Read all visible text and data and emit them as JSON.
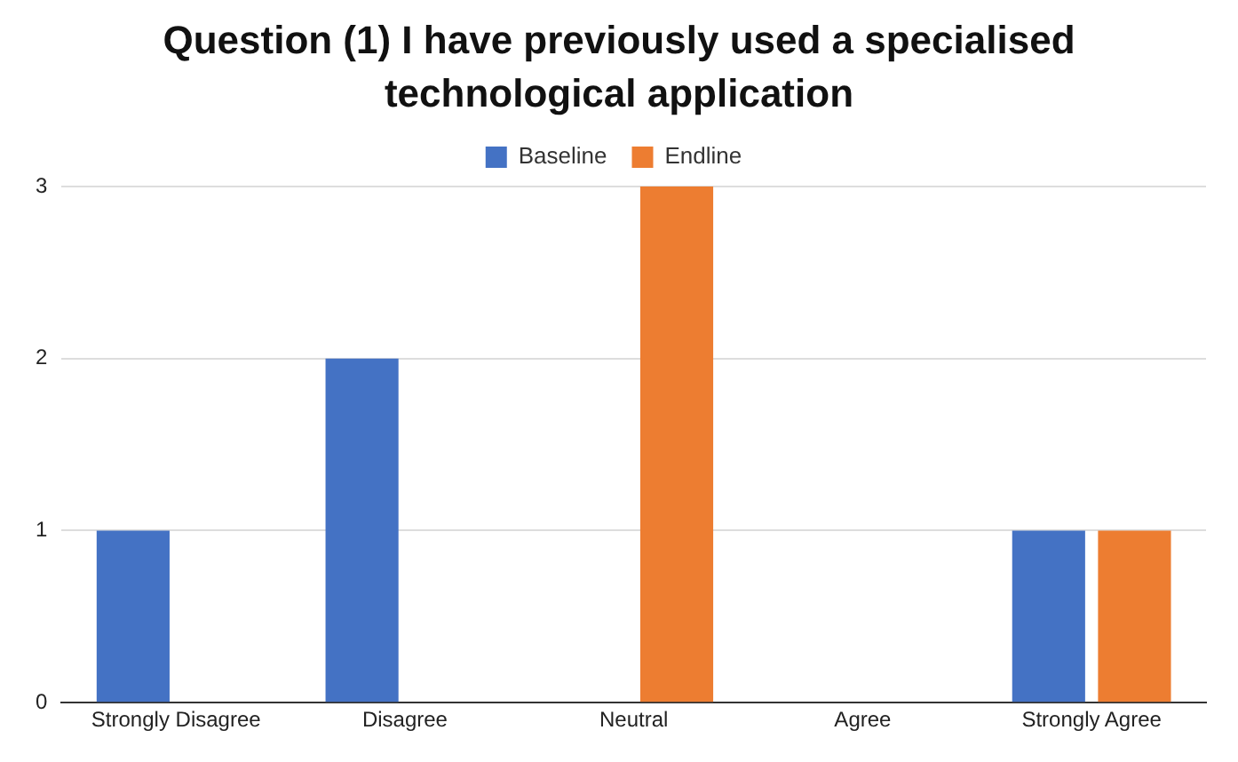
{
  "chart_data": {
    "type": "bar",
    "title": "Question (1) I have previously used a specialised technological application",
    "categories": [
      "Strongly Disagree",
      "Disagree",
      "Neutral",
      "Agree",
      "Strongly Agree"
    ],
    "series": [
      {
        "name": "Baseline",
        "color": "#4472c4",
        "values": [
          1,
          2,
          0,
          0,
          1
        ]
      },
      {
        "name": "Endline",
        "color": "#ed7d31",
        "values": [
          0,
          0,
          3,
          0,
          1
        ]
      }
    ],
    "ylim": [
      0,
      3
    ],
    "yticks": [
      0,
      1,
      2,
      3
    ],
    "grid": "y",
    "legend": "top"
  }
}
